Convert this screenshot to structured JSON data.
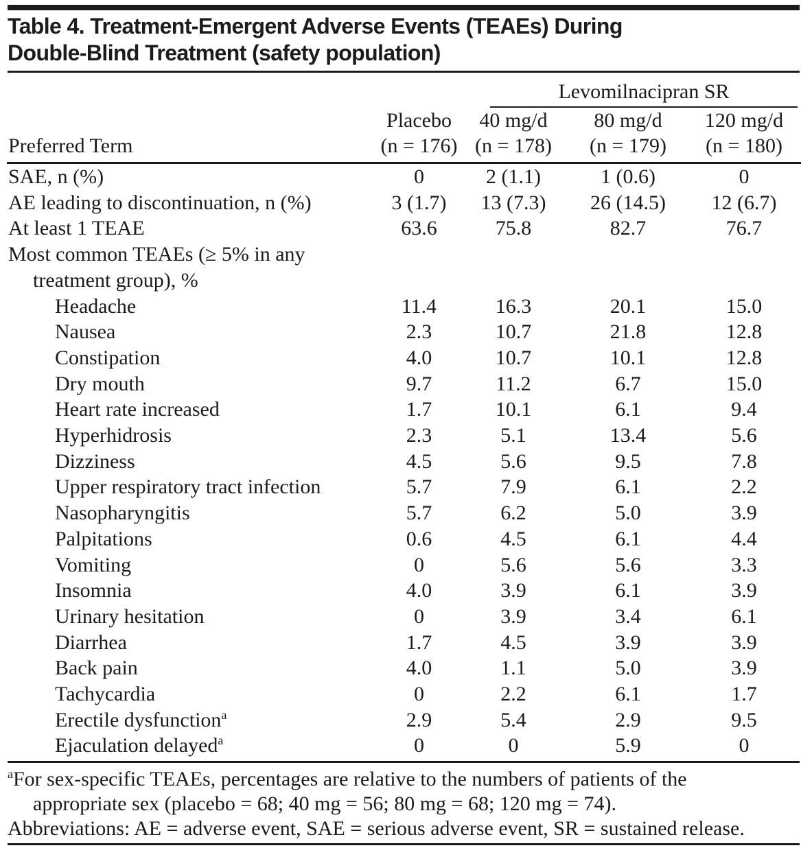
{
  "page": {
    "background": "#ffffff",
    "text_color": "#1b1b1b",
    "rule_color": "#1b1b1b"
  },
  "title": {
    "line1": "Table 4. Treatment-Emergent Adverse Events (TEAEs) During",
    "line2": "Double-Blind Treatment (safety population)"
  },
  "table": {
    "group_header": "Levomilnacipran SR",
    "row_header_label": "Preferred Term",
    "columns": [
      {
        "label": "Placebo",
        "n": "(n = 176)"
      },
      {
        "label": "40 mg/d",
        "n": "(n = 178)"
      },
      {
        "label": "80 mg/d",
        "n": "(n = 179)"
      },
      {
        "label": "120 mg/d",
        "n": "(n = 180)"
      }
    ],
    "rows": [
      {
        "label": "SAE, n (%)",
        "indent": 0,
        "values": [
          "0",
          "2 (1.1)",
          "1 (0.6)",
          "0"
        ]
      },
      {
        "label": "AE leading to discontinuation, n (%)",
        "indent": 0,
        "values": [
          "3 (1.7)",
          "13 (7.3)",
          "26 (14.5)",
          "12 (6.7)"
        ]
      },
      {
        "label": "At least 1 TEAE",
        "indent": 0,
        "values": [
          "63.6",
          "75.8",
          "82.7",
          "76.7"
        ]
      },
      {
        "label": "Most common TEAEs (≥ 5% in any",
        "label2": "treatment group), %",
        "indent": 0,
        "values": [
          "",
          "",
          "",
          ""
        ]
      },
      {
        "label": "Headache",
        "indent": 1,
        "values": [
          "11.4",
          "16.3",
          "20.1",
          "15.0"
        ]
      },
      {
        "label": "Nausea",
        "indent": 1,
        "values": [
          "2.3",
          "10.7",
          "21.8",
          "12.8"
        ]
      },
      {
        "label": "Constipation",
        "indent": 1,
        "values": [
          "4.0",
          "10.7",
          "10.1",
          "12.8"
        ]
      },
      {
        "label": "Dry mouth",
        "indent": 1,
        "values": [
          "9.7",
          "11.2",
          "6.7",
          "15.0"
        ]
      },
      {
        "label": "Heart rate increased",
        "indent": 1,
        "values": [
          "1.7",
          "10.1",
          "6.1",
          "9.4"
        ]
      },
      {
        "label": "Hyperhidrosis",
        "indent": 1,
        "values": [
          "2.3",
          "5.1",
          "13.4",
          "5.6"
        ]
      },
      {
        "label": "Dizziness",
        "indent": 1,
        "values": [
          "4.5",
          "5.6",
          "9.5",
          "7.8"
        ]
      },
      {
        "label": "Upper respiratory tract infection",
        "indent": 1,
        "values": [
          "5.7",
          "7.9",
          "6.1",
          "2.2"
        ]
      },
      {
        "label": "Nasopharyngitis",
        "indent": 1,
        "values": [
          "5.7",
          "6.2",
          "5.0",
          "3.9"
        ]
      },
      {
        "label": "Palpitations",
        "indent": 1,
        "values": [
          "0.6",
          "4.5",
          "6.1",
          "4.4"
        ]
      },
      {
        "label": "Vomiting",
        "indent": 1,
        "values": [
          "0",
          "5.6",
          "5.6",
          "3.3"
        ]
      },
      {
        "label": "Insomnia",
        "indent": 1,
        "values": [
          "4.0",
          "3.9",
          "6.1",
          "3.9"
        ]
      },
      {
        "label": "Urinary hesitation",
        "indent": 1,
        "values": [
          "0",
          "3.9",
          "3.4",
          "6.1"
        ]
      },
      {
        "label": "Diarrhea",
        "indent": 1,
        "values": [
          "1.7",
          "4.5",
          "3.9",
          "3.9"
        ]
      },
      {
        "label": "Back pain",
        "indent": 1,
        "values": [
          "4.0",
          "1.1",
          "5.0",
          "3.9"
        ]
      },
      {
        "label": "Tachycardia",
        "indent": 1,
        "values": [
          "0",
          "2.2",
          "6.1",
          "1.7"
        ]
      },
      {
        "label": "Erectile dysfunction",
        "sup": "a",
        "indent": 1,
        "values": [
          "2.9",
          "5.4",
          "2.9",
          "9.5"
        ]
      },
      {
        "label": "Ejaculation delayed",
        "sup": "a",
        "indent": 1,
        "values": [
          "0",
          "0",
          "5.9",
          "0"
        ]
      }
    ]
  },
  "footnotes": {
    "marker": "a",
    "line1": "For sex-specific TEAEs, percentages are relative to the numbers of patients of the",
    "line2": "appropriate sex (placebo = 68; 40 mg = 56; 80 mg = 68; 120 mg = 74).",
    "abbreviations": "Abbreviations: AE = adverse event, SAE = serious adverse event, SR = sustained release."
  }
}
